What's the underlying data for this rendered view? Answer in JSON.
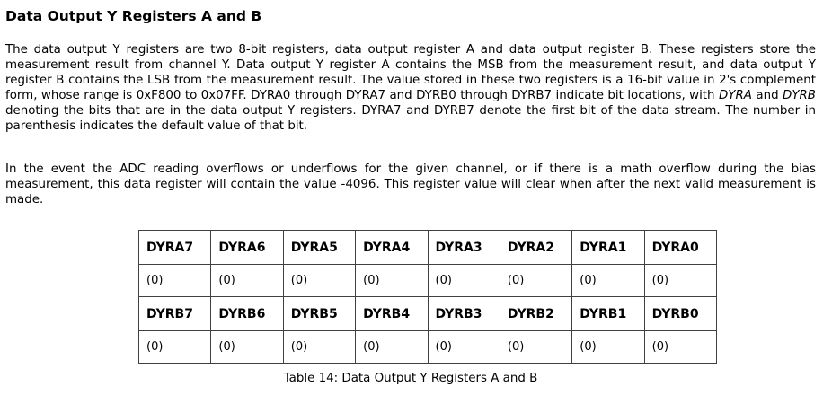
{
  "page": {
    "heading": "Data Output Y Registers A and B",
    "paragraph1": {
      "part1": "The data output Y registers are two 8-bit registers, data output register A and data output register B.  These registers store the measurement result from channel Y.  Data output Y register A contains the MSB from the measurement result, and data output Y register B contains the LSB from the measurement result.  The value stored in these two registers is a 16-bit value in 2's complement form, whose range is 0xF800 to 0x07FF.  DYRA0 through DYRA7 and DYRB0 through DYRB7 indicate bit locations, with ",
      "italic1": "DYRA",
      "part2": " and ",
      "italic2": "DYRB",
      "part3": " denoting the bits that are in the data output Y registers. DYRA7 and DYRB7 denote the first bit of the data stream.  The number in parenthesis indicates the default value of that bit."
    },
    "paragraph2": "In the event the ADC reading overflows or underflows for the given channel, or if there is a math overflow during the bias measurement, this data register will contain the value -4096. This register value will clear when after the next valid measurement is made.",
    "table": {
      "rows": [
        {
          "cells": [
            "DYRA7",
            "DYRA6",
            "DYRA5",
            "DYRA4",
            "DYRA3",
            "DYRA2",
            "DYRA1",
            "DYRA0"
          ]
        },
        {
          "cells": [
            "(0)",
            "(0)",
            "(0)",
            "(0)",
            "(0)",
            "(0)",
            "(0)",
            "(0)"
          ]
        },
        {
          "cells": [
            "DYRB7",
            "DYRB6",
            "DYRB5",
            "DYRB4",
            "DYRB3",
            "DYRB2",
            "DYRB1",
            "DYRB0"
          ]
        },
        {
          "cells": [
            "(0)",
            "(0)",
            "(0)",
            "(0)",
            "(0)",
            "(0)",
            "(0)",
            "(0)"
          ]
        }
      ],
      "caption": "Table 14:  Data Output Y Registers A and B"
    },
    "colors": {
      "text": "#000000",
      "table_border": "#404040",
      "background": "#ffffff"
    }
  }
}
